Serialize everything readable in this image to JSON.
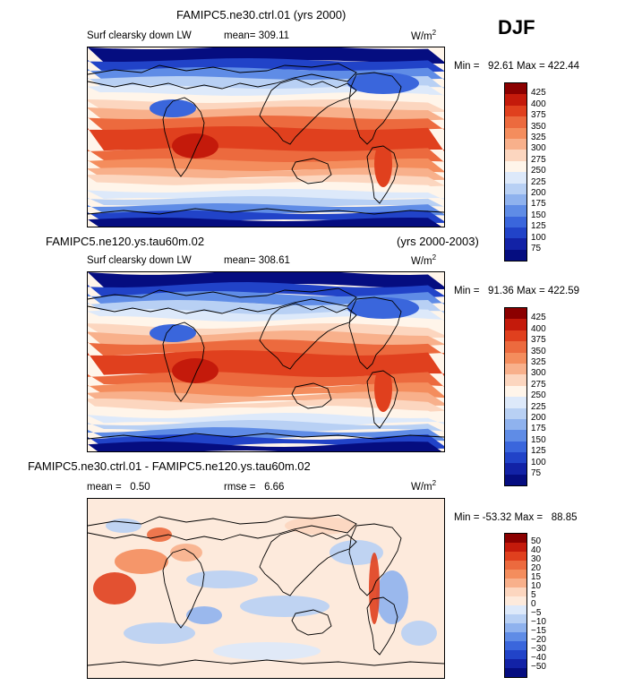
{
  "season": "DJF",
  "colors": {
    "abs_scale": [
      "#8b0000",
      "#c41a0b",
      "#e0401e",
      "#ec6a3e",
      "#f48d5d",
      "#f8b08b",
      "#fcd6bf",
      "#fff5ea",
      "#dde9fa",
      "#b8d0f4",
      "#8fb2ee",
      "#5f8ce6",
      "#3a66dc",
      "#2143c8",
      "#1222a6",
      "#050d80"
    ],
    "diff_scale": [
      "#8b0000",
      "#c41a0b",
      "#e0401e",
      "#ec6a3e",
      "#f48d5d",
      "#f8b08b",
      "#fcd6bf",
      "#fdeadc",
      "#dde9fa",
      "#b8d0f4",
      "#8fb2ee",
      "#5f8ce6",
      "#3a66dc",
      "#2143c8",
      "#1222a6",
      "#050d80"
    ]
  },
  "chart_data": [
    {
      "type": "heatmap",
      "title": "FAMIPC5.ne30.ctrl.01 (yrs 2000)",
      "variable": "Surf clearsky down LW",
      "mean_label": "mean=",
      "mean": "309.11",
      "units": "W/m",
      "units_sup": "2",
      "min_label": "Min =",
      "min": "92.61",
      "max_label": "Max =",
      "max": "422.44",
      "colorbar_ticks": [
        "425",
        "400",
        "375",
        "350",
        "325",
        "300",
        "275",
        "250",
        "225",
        "200",
        "175",
        "150",
        "125",
        "100",
        "75"
      ]
    },
    {
      "type": "heatmap",
      "title": "FAMIPC5.ne120.ys.tau60m.02",
      "title_right": "(yrs 2000-2003)",
      "variable": "Surf clearsky down LW",
      "mean_label": "mean=",
      "mean": "308.61",
      "units": "W/m",
      "units_sup": "2",
      "min_label": "Min =",
      "min": "91.36",
      "max_label": "Max =",
      "max": "422.59",
      "colorbar_ticks": [
        "425",
        "400",
        "375",
        "350",
        "325",
        "300",
        "275",
        "250",
        "225",
        "200",
        "175",
        "150",
        "125",
        "100",
        "75"
      ]
    },
    {
      "type": "heatmap",
      "title": "FAMIPC5.ne30.ctrl.01 - FAMIPC5.ne120.ys.tau60m.02",
      "mean_label": "mean =",
      "mean": "0.50",
      "rmse_label": "rmse =",
      "rmse": "6.66",
      "units": "W/m",
      "units_sup": "2",
      "min_label": "Min =",
      "min": "-53.32",
      "max_label": "Max =",
      "max": "88.85",
      "colorbar_ticks": [
        "50",
        "40",
        "30",
        "20",
        "15",
        "10",
        "5",
        "0",
        "−5",
        "−10",
        "−15",
        "−20",
        "−30",
        "−40",
        "−50"
      ]
    }
  ]
}
